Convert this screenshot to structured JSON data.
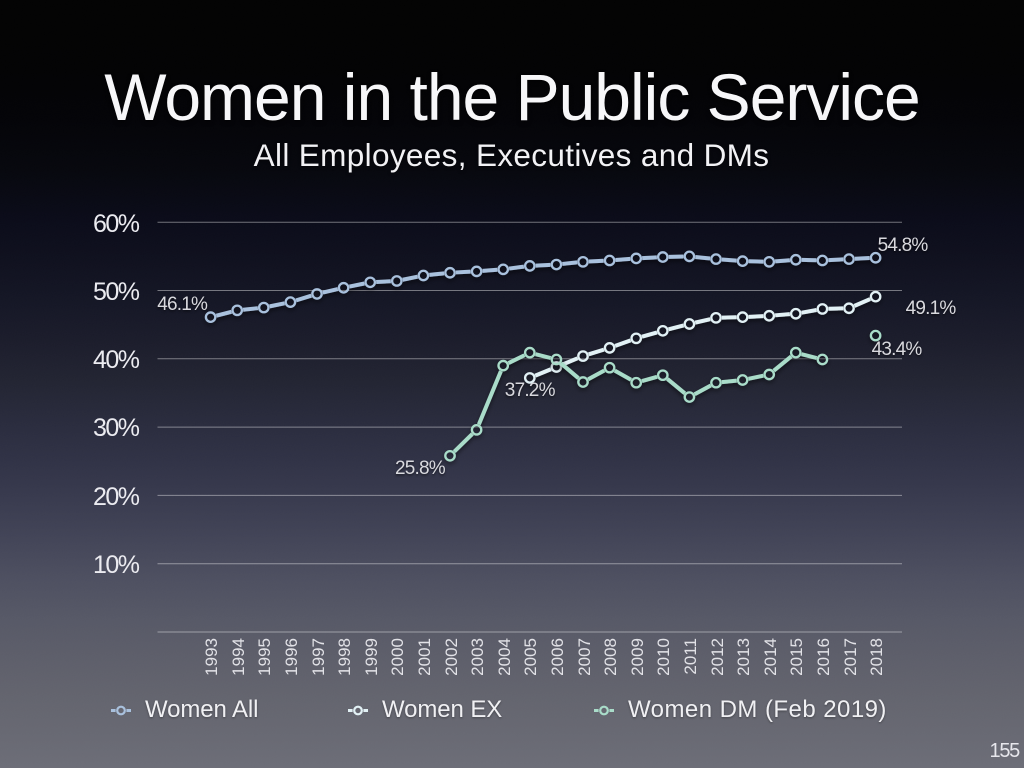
{
  "slide": {
    "title": "Women in the Public Service",
    "subtitle": "All Employees, Executives and DMs",
    "page_number": "155",
    "background_gradient": [
      "#000000",
      "#000001",
      "#010105",
      "#04050b",
      "#080917",
      "#0d0e1c",
      "#121423",
      "#191a29",
      "#202230",
      "#27293b",
      "#2e3044",
      "#37394d",
      "#414356",
      "#4c4e5f",
      "#555765",
      "#5c5d69",
      "#62636d",
      "#676872",
      "#6b6c76"
    ]
  },
  "chart_data": {
    "type": "line",
    "title": "Women in the Public Service",
    "subtitle": "All Employees, Executives and DMs",
    "xlabel": "",
    "ylabel": "",
    "ylim": [
      0,
      65
    ],
    "yticks": [
      10,
      20,
      30,
      40,
      50,
      60
    ],
    "ytick_labels": [
      "10%",
      "20%",
      "30%",
      "40%",
      "50%",
      "60%"
    ],
    "grid": true,
    "legend_position": "bottom",
    "x": [
      1993,
      1994,
      1995,
      1996,
      1997,
      1998,
      1999,
      2000,
      2001,
      2002,
      2003,
      2004,
      2005,
      2006,
      2007,
      2008,
      2009,
      2010,
      2011,
      2012,
      2013,
      2014,
      2015,
      2016,
      2017,
      2018
    ],
    "x_tick_labels": [
      "1993",
      "1994",
      "1995",
      "1996",
      "1997",
      "1998",
      "1999",
      "2000",
      "2001",
      "2002",
      "2003",
      "2004",
      "2005",
      "2006",
      "2007",
      "2008",
      "2009",
      "2010",
      "2011",
      "2012",
      "2013",
      "2014",
      "2015",
      "2016",
      "2017",
      "2018"
    ],
    "series": [
      {
        "name": "Women All",
        "color": "#a9c1dd",
        "points": [
          {
            "x": 1993,
            "y": 46.1
          },
          {
            "x": 1994,
            "y": 47.1
          },
          {
            "x": 1995,
            "y": 47.5
          },
          {
            "x": 1996,
            "y": 48.3
          },
          {
            "x": 1997,
            "y": 49.5
          },
          {
            "x": 1998,
            "y": 50.4
          },
          {
            "x": 1999,
            "y": 51.2
          },
          {
            "x": 2000,
            "y": 51.4
          },
          {
            "x": 2001,
            "y": 52.2
          },
          {
            "x": 2002,
            "y": 52.6
          },
          {
            "x": 2003,
            "y": 52.8
          },
          {
            "x": 2004,
            "y": 53.1
          },
          {
            "x": 2005,
            "y": 53.6
          },
          {
            "x": 2006,
            "y": 53.8
          },
          {
            "x": 2007,
            "y": 54.2
          },
          {
            "x": 2008,
            "y": 54.4
          },
          {
            "x": 2009,
            "y": 54.7
          },
          {
            "x": 2010,
            "y": 54.9
          },
          {
            "x": 2011,
            "y": 55.0
          },
          {
            "x": 2012,
            "y": 54.6
          },
          {
            "x": 2013,
            "y": 54.3
          },
          {
            "x": 2014,
            "y": 54.2
          },
          {
            "x": 2015,
            "y": 54.5
          },
          {
            "x": 2016,
            "y": 54.4
          },
          {
            "x": 2017,
            "y": 54.6
          },
          {
            "x": 2018,
            "y": 54.8
          }
        ]
      },
      {
        "name": "Women EX",
        "color": "#e2f1f5",
        "points": [
          {
            "x": 2005,
            "y": 37.2
          },
          {
            "x": 2006,
            "y": 38.8
          },
          {
            "x": 2007,
            "y": 40.4
          },
          {
            "x": 2008,
            "y": 41.6
          },
          {
            "x": 2009,
            "y": 43.0
          },
          {
            "x": 2010,
            "y": 44.1
          },
          {
            "x": 2011,
            "y": 45.1
          },
          {
            "x": 2012,
            "y": 46.0
          },
          {
            "x": 2013,
            "y": 46.1
          },
          {
            "x": 2014,
            "y": 46.3
          },
          {
            "x": 2015,
            "y": 46.6
          },
          {
            "x": 2016,
            "y": 47.3
          },
          {
            "x": 2017,
            "y": 47.4
          },
          {
            "x": 2018,
            "y": 49.1
          }
        ]
      },
      {
        "name": "Women DM (Feb 2019)",
        "color": "#a9dcc9",
        "points": [
          {
            "x": 2002,
            "y": 25.8
          },
          {
            "x": 2003,
            "y": 29.6
          },
          {
            "x": 2004,
            "y": 39.0
          },
          {
            "x": 2005,
            "y": 40.9
          },
          {
            "x": 2006,
            "y": 39.9
          },
          {
            "x": 2007,
            "y": 36.6
          },
          {
            "x": 2008,
            "y": 38.7
          },
          {
            "x": 2009,
            "y": 36.5
          },
          {
            "x": 2010,
            "y": 37.6
          },
          {
            "x": 2011,
            "y": 34.4
          },
          {
            "x": 2012,
            "y": 36.5
          },
          {
            "x": 2013,
            "y": 36.9
          },
          {
            "x": 2014,
            "y": 37.7
          },
          {
            "x": 2015,
            "y": 40.9
          },
          {
            "x": 2016,
            "y": 39.9
          },
          {
            "x": 2018,
            "y": 43.4,
            "isolated": true
          }
        ]
      }
    ],
    "annotations": [
      {
        "series": 0,
        "x": 1993,
        "label": "46.1%",
        "placement": "left-above"
      },
      {
        "series": 0,
        "x": 2018,
        "label": "54.8%",
        "placement": "right-above"
      },
      {
        "series": 1,
        "x": 2005,
        "label": "37.2%",
        "placement": "below-left"
      },
      {
        "series": 1,
        "x": 2018,
        "label": "49.1%",
        "placement": "right-below-far"
      },
      {
        "series": 2,
        "x": 2002,
        "label": "25.8%",
        "placement": "below-left-far"
      },
      {
        "series": 2,
        "x": 2018,
        "label": "43.4%",
        "placement": "below"
      }
    ],
    "legend": [
      "Women All",
      "Women EX",
      "Women DM (Feb 2019)"
    ]
  }
}
